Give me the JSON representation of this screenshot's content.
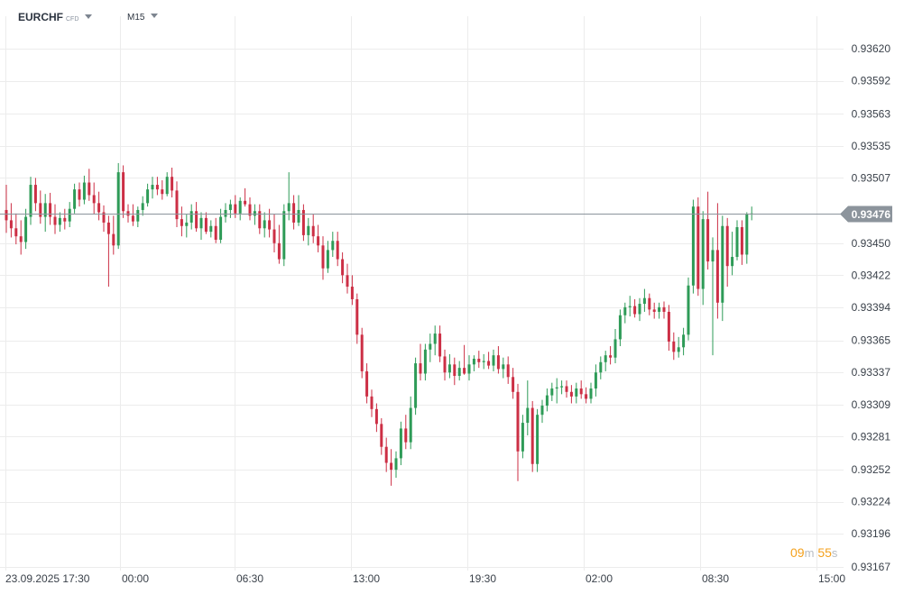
{
  "header": {
    "symbol": "EURCHF",
    "instrument_type": "CFD",
    "timeframe": "M15"
  },
  "countdown": {
    "minutes": "09",
    "minutes_unit": "m",
    "seconds": "55",
    "seconds_unit": "s"
  },
  "colors": {
    "up": "#2e9b57",
    "down": "#cc2f45",
    "grid": "#ececec",
    "price_line": "#8c949c",
    "price_label_bg": "#8c949c"
  },
  "chart_data": {
    "type": "candlestick",
    "symbol": "EURCHF",
    "timeframe": "M15",
    "current_price": "0.93476",
    "y_ticks": [
      "0.93620",
      "0.93592",
      "0.93563",
      "0.93535",
      "0.93507",
      "0.93476",
      "0.93450",
      "0.93422",
      "0.93394",
      "0.93365",
      "0.93337",
      "0.93309",
      "0.93281",
      "0.93252",
      "0.93224",
      "0.93196",
      "0.93167"
    ],
    "x_ticks": [
      "23.09.2025  17:30",
      "00:00",
      "06:30",
      "13:00",
      "19:30",
      "02:00",
      "08:30",
      "15:00"
    ],
    "ylim": [
      0.93167,
      0.9362
    ],
    "grid": true,
    "candles": [
      [
        0.93479,
        0.93501,
        0.93459,
        0.9347
      ],
      [
        0.9347,
        0.93485,
        0.93455,
        0.93463
      ],
      [
        0.93463,
        0.93476,
        0.93449,
        0.93456
      ],
      [
        0.93456,
        0.9347,
        0.9344,
        0.93451
      ],
      [
        0.93451,
        0.9348,
        0.93445,
        0.93473
      ],
      [
        0.93473,
        0.93508,
        0.93466,
        0.93501
      ],
      [
        0.93501,
        0.93507,
        0.93478,
        0.93485
      ],
      [
        0.93485,
        0.93496,
        0.93467,
        0.93473
      ],
      [
        0.93473,
        0.93493,
        0.9346,
        0.93485
      ],
      [
        0.93485,
        0.93494,
        0.93466,
        0.93473
      ],
      [
        0.93473,
        0.93484,
        0.93458,
        0.93466
      ],
      [
        0.93466,
        0.93477,
        0.9346,
        0.93472
      ],
      [
        0.93472,
        0.9348,
        0.93462,
        0.93469
      ],
      [
        0.93469,
        0.93486,
        0.93464,
        0.9348
      ],
      [
        0.9348,
        0.93502,
        0.93476,
        0.93497
      ],
      [
        0.93497,
        0.93503,
        0.93482,
        0.93488
      ],
      [
        0.93488,
        0.93509,
        0.93484,
        0.93503
      ],
      [
        0.93503,
        0.93515,
        0.93487,
        0.93492
      ],
      [
        0.93492,
        0.93503,
        0.93475,
        0.93485
      ],
      [
        0.93485,
        0.93495,
        0.9347,
        0.93477
      ],
      [
        0.93477,
        0.93483,
        0.9346,
        0.93468
      ],
      [
        0.93468,
        0.93474,
        0.93412,
        0.93458
      ],
      [
        0.93458,
        0.93474,
        0.9344,
        0.93448
      ],
      [
        0.93448,
        0.9352,
        0.93445,
        0.93512
      ],
      [
        0.93512,
        0.93518,
        0.93472,
        0.93478
      ],
      [
        0.93478,
        0.93484,
        0.93468,
        0.93474
      ],
      [
        0.93474,
        0.93484,
        0.93465,
        0.93469
      ],
      [
        0.93469,
        0.93482,
        0.93464,
        0.93479
      ],
      [
        0.93479,
        0.93491,
        0.93474,
        0.93485
      ],
      [
        0.93485,
        0.93502,
        0.93482,
        0.93497
      ],
      [
        0.93497,
        0.93508,
        0.93489,
        0.93501
      ],
      [
        0.93501,
        0.93508,
        0.93492,
        0.93497
      ],
      [
        0.93497,
        0.93505,
        0.93488,
        0.93493
      ],
      [
        0.93493,
        0.93512,
        0.93491,
        0.93508
      ],
      [
        0.93508,
        0.93516,
        0.9349,
        0.93496
      ],
      [
        0.93496,
        0.93504,
        0.93464,
        0.93471
      ],
      [
        0.93471,
        0.93482,
        0.93456,
        0.93465
      ],
      [
        0.93465,
        0.93475,
        0.93455,
        0.93468
      ],
      [
        0.93468,
        0.93484,
        0.93462,
        0.93478
      ],
      [
        0.93478,
        0.93486,
        0.9346,
        0.93463
      ],
      [
        0.93463,
        0.93477,
        0.93453,
        0.93472
      ],
      [
        0.93472,
        0.93477,
        0.93458,
        0.9346
      ],
      [
        0.9346,
        0.9347,
        0.93455,
        0.93465
      ],
      [
        0.93465,
        0.93472,
        0.9345,
        0.93453
      ],
      [
        0.93453,
        0.9348,
        0.9345,
        0.93473
      ],
      [
        0.93473,
        0.93485,
        0.93468,
        0.93479
      ],
      [
        0.93479,
        0.93488,
        0.93472,
        0.93484
      ],
      [
        0.93484,
        0.93492,
        0.93472,
        0.93476
      ],
      [
        0.93476,
        0.9349,
        0.9347,
        0.93487
      ],
      [
        0.93487,
        0.93498,
        0.93482,
        0.93484
      ],
      [
        0.93484,
        0.9349,
        0.9347,
        0.93474
      ],
      [
        0.93474,
        0.93484,
        0.93466,
        0.93478
      ],
      [
        0.93478,
        0.93484,
        0.93458,
        0.93463
      ],
      [
        0.93463,
        0.93477,
        0.93455,
        0.9347
      ],
      [
        0.9347,
        0.9348,
        0.93455,
        0.93462
      ],
      [
        0.93462,
        0.93475,
        0.93442,
        0.9345
      ],
      [
        0.9345,
        0.93466,
        0.93432,
        0.93436
      ],
      [
        0.93436,
        0.93484,
        0.9343,
        0.93478
      ],
      [
        0.93478,
        0.93512,
        0.9347,
        0.93485
      ],
      [
        0.93485,
        0.93492,
        0.93462,
        0.93468
      ],
      [
        0.93468,
        0.93492,
        0.93465,
        0.93479
      ],
      [
        0.93479,
        0.93484,
        0.93452,
        0.93457
      ],
      [
        0.93457,
        0.93472,
        0.93448,
        0.93465
      ],
      [
        0.93465,
        0.93475,
        0.9345,
        0.93456
      ],
      [
        0.93456,
        0.93466,
        0.93442,
        0.93448
      ],
      [
        0.93448,
        0.93456,
        0.93418,
        0.93428
      ],
      [
        0.93428,
        0.93452,
        0.93424,
        0.93444
      ],
      [
        0.93444,
        0.9346,
        0.93438,
        0.93452
      ],
      [
        0.93452,
        0.9346,
        0.9343,
        0.93436
      ],
      [
        0.93436,
        0.93442,
        0.93415,
        0.93422
      ],
      [
        0.93422,
        0.93432,
        0.93406,
        0.93412
      ],
      [
        0.93412,
        0.93422,
        0.93396,
        0.93401
      ],
      [
        0.93401,
        0.93406,
        0.93362,
        0.9337
      ],
      [
        0.9337,
        0.93376,
        0.93332,
        0.93338
      ],
      [
        0.93338,
        0.93345,
        0.9331,
        0.93316
      ],
      [
        0.93316,
        0.93322,
        0.93298,
        0.93305
      ],
      [
        0.93305,
        0.9331,
        0.93285,
        0.93292
      ],
      [
        0.93292,
        0.93297,
        0.93265,
        0.93272
      ],
      [
        0.93272,
        0.9328,
        0.9325,
        0.93258
      ],
      [
        0.93258,
        0.9327,
        0.93238,
        0.93252
      ],
      [
        0.93252,
        0.93268,
        0.93245,
        0.93262
      ],
      [
        0.93262,
        0.93294,
        0.93256,
        0.93288
      ],
      [
        0.93288,
        0.933,
        0.9327,
        0.93276
      ],
      [
        0.93276,
        0.93316,
        0.9327,
        0.93306
      ],
      [
        0.93306,
        0.9335,
        0.933,
        0.93345
      ],
      [
        0.93345,
        0.93362,
        0.9333,
        0.93336
      ],
      [
        0.93336,
        0.93362,
        0.9333,
        0.93357
      ],
      [
        0.93357,
        0.93371,
        0.93346,
        0.93362
      ],
      [
        0.93362,
        0.93378,
        0.93352,
        0.93371
      ],
      [
        0.93371,
        0.93378,
        0.93346,
        0.93351
      ],
      [
        0.93351,
        0.93357,
        0.9333,
        0.93337
      ],
      [
        0.93337,
        0.93353,
        0.93332,
        0.93344
      ],
      [
        0.93344,
        0.9335,
        0.93326,
        0.93334
      ],
      [
        0.93334,
        0.93347,
        0.9333,
        0.93341
      ],
      [
        0.93341,
        0.93361,
        0.93335,
        0.93336
      ],
      [
        0.93336,
        0.93352,
        0.9333,
        0.93344
      ],
      [
        0.93344,
        0.93352,
        0.93338,
        0.93349
      ],
      [
        0.93349,
        0.93356,
        0.93341,
        0.93346
      ],
      [
        0.93346,
        0.93353,
        0.9334,
        0.93347
      ],
      [
        0.93347,
        0.93355,
        0.9334,
        0.93343
      ],
      [
        0.93343,
        0.93357,
        0.93338,
        0.93352
      ],
      [
        0.93352,
        0.9336,
        0.93336,
        0.9334
      ],
      [
        0.9334,
        0.9335,
        0.93332,
        0.93344
      ],
      [
        0.93344,
        0.93351,
        0.93327,
        0.93333
      ],
      [
        0.93333,
        0.93341,
        0.93314,
        0.9332
      ],
      [
        0.9332,
        0.93327,
        0.93242,
        0.93268
      ],
      [
        0.93268,
        0.933,
        0.93262,
        0.93293
      ],
      [
        0.93293,
        0.9333,
        0.93282,
        0.93306
      ],
      [
        0.93306,
        0.93312,
        0.9325,
        0.93257
      ],
      [
        0.93257,
        0.93305,
        0.9325,
        0.933
      ],
      [
        0.933,
        0.93313,
        0.93293,
        0.93308
      ],
      [
        0.93308,
        0.93323,
        0.93303,
        0.93317
      ],
      [
        0.93317,
        0.93328,
        0.93312,
        0.93323
      ],
      [
        0.93323,
        0.93332,
        0.9331,
        0.93324
      ],
      [
        0.93324,
        0.9333,
        0.93318,
        0.93325
      ],
      [
        0.93325,
        0.9333,
        0.93315,
        0.9332
      ],
      [
        0.9332,
        0.93326,
        0.9331,
        0.93316
      ],
      [
        0.93316,
        0.93328,
        0.9331,
        0.93323
      ],
      [
        0.93323,
        0.9333,
        0.93314,
        0.93318
      ],
      [
        0.93318,
        0.93324,
        0.9331,
        0.93314
      ],
      [
        0.93314,
        0.93328,
        0.9331,
        0.93323
      ],
      [
        0.93323,
        0.93344,
        0.93316,
        0.93337
      ],
      [
        0.93337,
        0.93351,
        0.93331,
        0.93346
      ],
      [
        0.93346,
        0.93356,
        0.93338,
        0.93352
      ],
      [
        0.93352,
        0.9336,
        0.93344,
        0.9335
      ],
      [
        0.9335,
        0.93375,
        0.93345,
        0.93366
      ],
      [
        0.93366,
        0.93392,
        0.9336,
        0.93387
      ],
      [
        0.93387,
        0.93398,
        0.9338,
        0.93394
      ],
      [
        0.93394,
        0.93404,
        0.93386,
        0.93395
      ],
      [
        0.93395,
        0.93401,
        0.93385,
        0.93388
      ],
      [
        0.93388,
        0.93402,
        0.93382,
        0.93397
      ],
      [
        0.93397,
        0.9341,
        0.9339,
        0.93402
      ],
      [
        0.93402,
        0.93406,
        0.93387,
        0.93392
      ],
      [
        0.93392,
        0.93398,
        0.93384,
        0.9339
      ],
      [
        0.9339,
        0.93398,
        0.93384,
        0.93394
      ],
      [
        0.93394,
        0.93399,
        0.93384,
        0.9339
      ],
      [
        0.9339,
        0.93396,
        0.93356,
        0.93364
      ],
      [
        0.93364,
        0.93372,
        0.93348,
        0.93355
      ],
      [
        0.93355,
        0.93368,
        0.9335,
        0.93359
      ],
      [
        0.93359,
        0.93376,
        0.93352,
        0.9337
      ],
      [
        0.9337,
        0.9342,
        0.93365,
        0.93413
      ],
      [
        0.93413,
        0.93488,
        0.93406,
        0.93482
      ],
      [
        0.93482,
        0.9349,
        0.93404,
        0.9341
      ],
      [
        0.9341,
        0.93478,
        0.93396,
        0.93471
      ],
      [
        0.93471,
        0.93495,
        0.93427,
        0.93434
      ],
      [
        0.93434,
        0.93455,
        0.93352,
        0.93444
      ],
      [
        0.93444,
        0.93485,
        0.93384,
        0.93398
      ],
      [
        0.93398,
        0.93474,
        0.93382,
        0.93465
      ],
      [
        0.93465,
        0.93472,
        0.93412,
        0.9343
      ],
      [
        0.9343,
        0.9346,
        0.93422,
        0.93438
      ],
      [
        0.93438,
        0.9347,
        0.93435,
        0.93464
      ],
      [
        0.93464,
        0.9347,
        0.93431,
        0.9344
      ],
      [
        0.9344,
        0.93477,
        0.93432,
        0.93475
      ],
      [
        0.93475,
        0.93482,
        0.9347,
        0.93476
      ]
    ]
  }
}
